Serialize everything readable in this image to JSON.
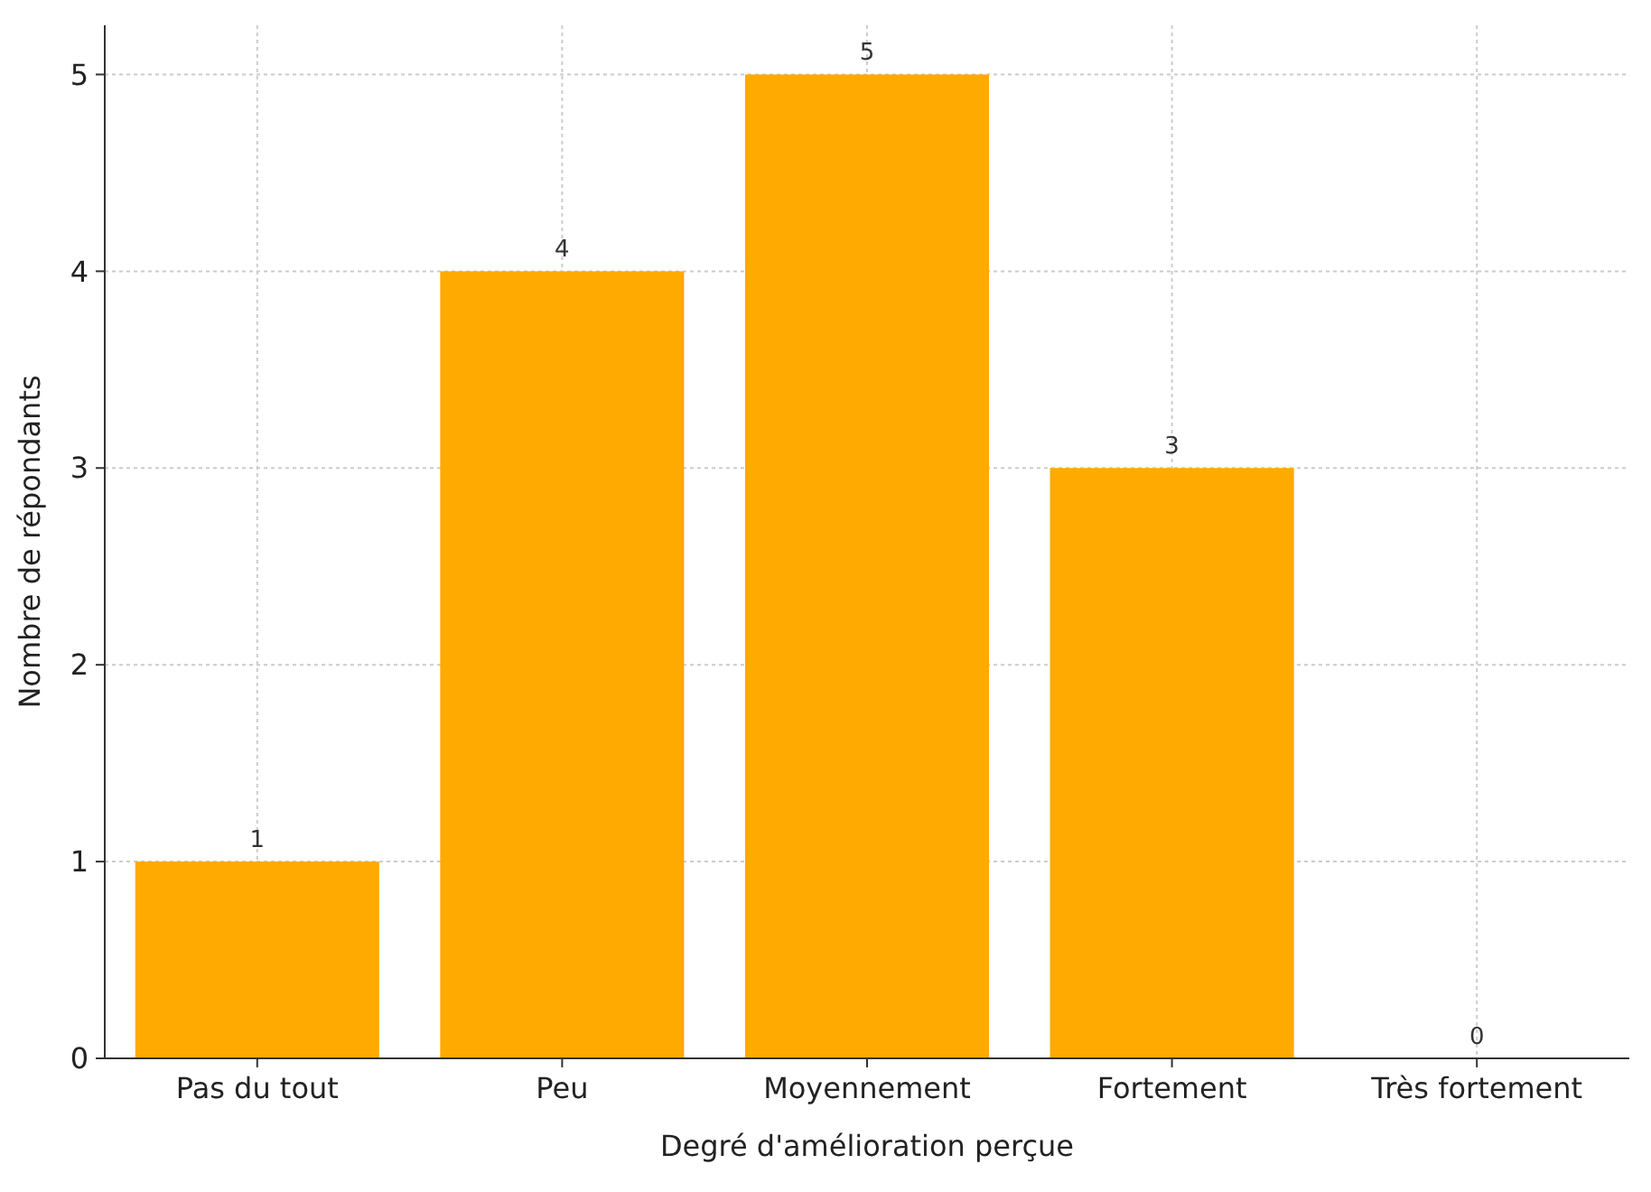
{
  "chart_data": {
    "type": "bar",
    "xlabel": "Degré d'amélioration perçue",
    "ylabel": "Nombre de répondants",
    "categories": [
      "Pas du tout",
      "Peu",
      "Moyennement",
      "Fortement",
      "Très fortement"
    ],
    "values": [
      1,
      4,
      5,
      3,
      0
    ],
    "color": "#ffaa00",
    "data_labels": true,
    "ylim": [
      0,
      5.25
    ],
    "yticks": [
      0,
      1,
      2,
      3,
      4,
      5
    ],
    "grid": true
  }
}
